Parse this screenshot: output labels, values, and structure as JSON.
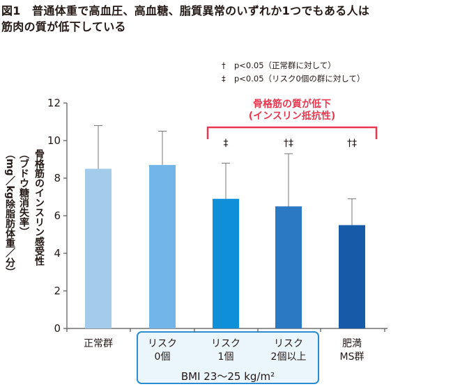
{
  "figure": {
    "title_line1": "図1　普通体重で高血圧、高血糖、脂質異常のいずれか1つでもある人は",
    "title_line2": "筋肉の質が低下している"
  },
  "notes": [
    {
      "symbol": "†",
      "text": "p<0.05（正常群に対して）"
    },
    {
      "symbol": "‡",
      "text": "p<0.05（リスク0個の群に対して）"
    }
  ],
  "y_axis_label": {
    "line1": "骨格筋のインスリン感受性",
    "line2": "（ブドウ糖消失率）",
    "line3": "（mg／kg除脂肪体重／分）"
  },
  "bmi_group_label": "BMI 23〜25 kg/m²",
  "decline_label": {
    "line1": "骨格筋の質が低下",
    "line2": "(インスリン抵抗性)"
  },
  "chart_data": {
    "type": "bar",
    "categories": [
      "正常群",
      "リスク\n0個",
      "リスク\n1個",
      "リスク\n2個以上",
      "肥満\nMS群"
    ],
    "category_lines": [
      [
        "正常群"
      ],
      [
        "リスク",
        "0個"
      ],
      [
        "リスク",
        "1個"
      ],
      [
        "リスク",
        "2個以上"
      ],
      [
        "肥満",
        "MS群"
      ]
    ],
    "values": [
      8.5,
      8.7,
      6.9,
      6.5,
      5.5
    ],
    "error_upper": [
      10.8,
      10.5,
      8.8,
      9.3,
      6.9
    ],
    "significance": [
      "",
      "",
      "‡",
      "†‡",
      "†‡"
    ],
    "bar_colors": [
      "#a3cbea",
      "#72b5e8",
      "#0e8fd8",
      "#2b79c2",
      "#165ba8"
    ],
    "yticks": [
      0,
      2,
      4,
      6,
      8,
      10,
      12
    ],
    "ylim": [
      0,
      12
    ],
    "grid": false,
    "legend": "none"
  }
}
